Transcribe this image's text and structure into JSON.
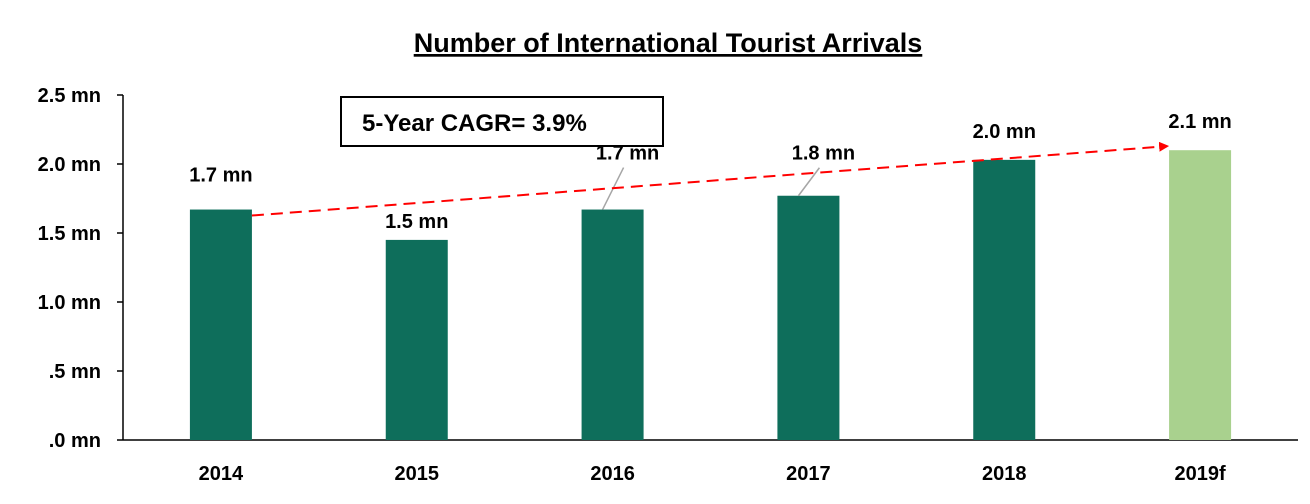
{
  "chart_data": {
    "type": "bar",
    "title": "Number of International Tourist Arrivals",
    "categories": [
      "2014",
      "2015",
      "2016",
      "2017",
      "2018",
      "2019f"
    ],
    "values": [
      1.67,
      1.45,
      1.67,
      1.77,
      2.03,
      2.1
    ],
    "data_labels": [
      "1.7 mn",
      "1.5 mn",
      "1.7 mn",
      "1.8 mn",
      "2.0 mn",
      "2.1 mn"
    ],
    "ylim": [
      0,
      2.5
    ],
    "y_ticks": [
      0,
      0.5,
      1.0,
      1.5,
      2.0,
      2.5
    ],
    "y_tick_labels": [
      ".0 mn",
      ".5 mn",
      "1.0 mn",
      "1.5 mn",
      "2.0 mn",
      "2.5 mn"
    ],
    "xlabel": "",
    "ylabel": "",
    "grid": false,
    "colors": {
      "actual": "#0e6e5b",
      "forecast": "#a9d18e",
      "trend_arrow": "#ff0000"
    },
    "annotation": {
      "text": "5-Year CAGR= 3.9%"
    }
  }
}
